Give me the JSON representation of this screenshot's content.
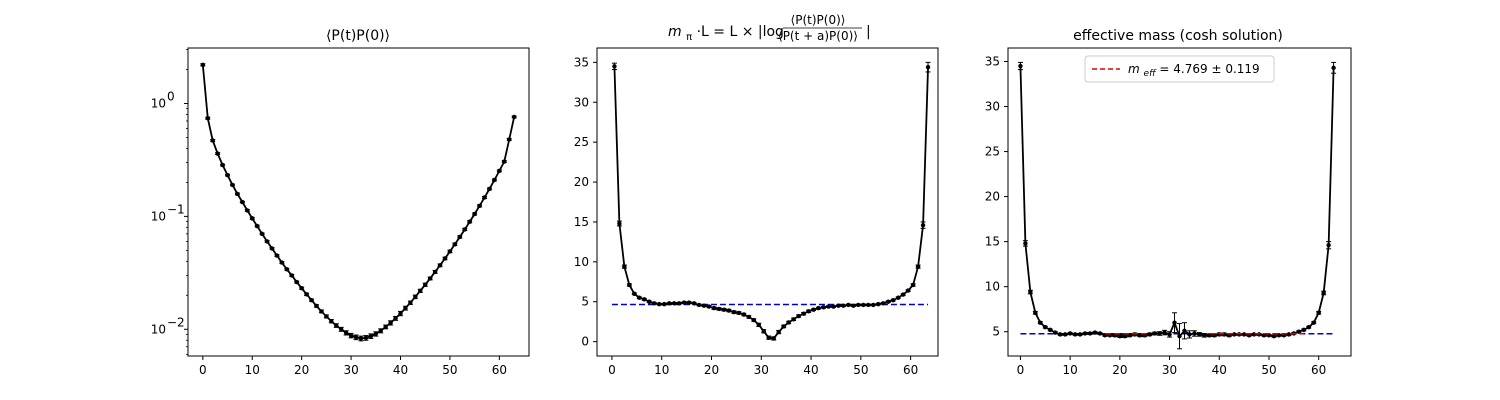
{
  "chart_data": [
    {
      "type": "line",
      "title": "⟨P(t)P(0)⟩",
      "xlabel": "",
      "ylabel": "",
      "yscale": "log",
      "xlim": [
        -3,
        66
      ],
      "ylim": [
        0.0058,
        3.1
      ],
      "x_ticks": [
        0,
        10,
        20,
        30,
        40,
        50,
        60
      ],
      "y_ticks": [
        {
          "value": 0.01,
          "base": "10",
          "exp": "−2"
        },
        {
          "value": 0.1,
          "base": "10",
          "exp": "−1"
        },
        {
          "value": 1,
          "base": "10",
          "exp": "0"
        }
      ],
      "grid": false,
      "color": "#000000",
      "series": [
        {
          "x": [
            0,
            1,
            2,
            3,
            4,
            5,
            6,
            7,
            8,
            9,
            10,
            11,
            12,
            13,
            14,
            15,
            16,
            17,
            18,
            19,
            20,
            21,
            22,
            23,
            24,
            25,
            26,
            27,
            28,
            29,
            30,
            31,
            32,
            33,
            34,
            35,
            36,
            37,
            38,
            39,
            40,
            41,
            42,
            43,
            44,
            45,
            46,
            47,
            48,
            49,
            50,
            51,
            52,
            53,
            54,
            55,
            56,
            57,
            58,
            59,
            60,
            61,
            62,
            63
          ],
          "y": [
            2.2,
            0.74,
            0.47,
            0.36,
            0.285,
            0.232,
            0.19,
            0.158,
            0.134,
            0.113,
            0.096,
            0.082,
            0.07,
            0.06,
            0.052,
            0.045,
            0.039,
            0.034,
            0.03,
            0.0262,
            0.0231,
            0.0204,
            0.0181,
            0.0161,
            0.0144,
            0.013,
            0.0118,
            0.0108,
            0.01,
            0.0093,
            0.0088,
            0.0085,
            0.0083,
            0.0084,
            0.0087,
            0.0091,
            0.0097,
            0.0105,
            0.0114,
            0.0125,
            0.0138,
            0.0154,
            0.0172,
            0.0194,
            0.0219,
            0.0248,
            0.0282,
            0.0322,
            0.0369,
            0.0424,
            0.0489,
            0.0566,
            0.0657,
            0.0766,
            0.0897,
            0.105,
            0.124,
            0.147,
            0.175,
            0.21,
            0.253,
            0.306,
            0.48,
            0.76
          ],
          "err": [
            0.05,
            0.015,
            0.01,
            0.007,
            0.005,
            0.004,
            0.003,
            0.003,
            0.002,
            0.002,
            0.002,
            0.0015,
            0.0012,
            0.001,
            0.0009,
            0.0008,
            0.0007,
            0.0006,
            0.0006,
            0.0005,
            0.0005,
            0.0005,
            0.0004,
            0.0004,
            0.0004,
            0.0004,
            0.0004,
            0.0004,
            0.0004,
            0.0004,
            0.0004,
            0.0004,
            0.0004,
            0.0004,
            0.0004,
            0.0004,
            0.0004,
            0.0004,
            0.0005,
            0.0005,
            0.0006,
            0.0006,
            0.0006,
            0.0007,
            0.0007,
            0.0008,
            0.0008,
            0.0009,
            0.001,
            0.0011,
            0.0012,
            0.0013,
            0.0015,
            0.0017,
            0.002,
            0.0023,
            0.0027,
            0.003,
            0.0036,
            0.0043,
            0.005,
            0.006,
            0.009,
            0.014
          ]
        }
      ]
    },
    {
      "type": "line",
      "title_parts": {
        "lhs": "m",
        "lhs_sub": "π",
        "mid": "·L = L × |log",
        "num": "⟨P(t)P(0)⟩",
        "den": "⟨P(t + a)P(0)⟩",
        "end": "|"
      },
      "xlabel": "",
      "ylabel": "",
      "xlim": [
        -3,
        65.5
      ],
      "ylim": [
        -1.8,
        36.8
      ],
      "x_ticks": [
        0,
        10,
        20,
        30,
        40,
        50,
        60
      ],
      "y_ticks": [
        0,
        5,
        10,
        15,
        20,
        25,
        30,
        35
      ],
      "grid": false,
      "color": "#000000",
      "series": [
        {
          "x": [
            0.5,
            1.5,
            2.5,
            3.5,
            4.5,
            5.5,
            6.5,
            7.5,
            8.5,
            9.5,
            10.5,
            11.5,
            12.5,
            13.5,
            14.5,
            15.5,
            16.5,
            17.5,
            18.5,
            19.5,
            20.5,
            21.5,
            22.5,
            23.5,
            24.5,
            25.5,
            26.5,
            27.5,
            28.5,
            29.5,
            30.5,
            31.5,
            32.5,
            33.5,
            34.5,
            35.5,
            36.5,
            37.5,
            38.5,
            39.5,
            40.5,
            41.5,
            42.5,
            43.5,
            44.5,
            45.5,
            46.5,
            47.5,
            48.5,
            49.5,
            50.5,
            51.5,
            52.5,
            53.5,
            54.5,
            55.5,
            56.5,
            57.5,
            58.5,
            59.5,
            60.5,
            61.5,
            62.5,
            63.5
          ],
          "y": [
            34.5,
            14.8,
            9.4,
            7.1,
            6.0,
            5.5,
            5.3,
            5.0,
            4.8,
            4.7,
            4.7,
            4.8,
            4.8,
            4.8,
            4.9,
            4.9,
            4.8,
            4.6,
            4.5,
            4.4,
            4.2,
            4.1,
            4.0,
            3.9,
            3.7,
            3.6,
            3.4,
            3.1,
            2.7,
            2.1,
            1.3,
            0.5,
            0.4,
            1.2,
            1.9,
            2.4,
            2.8,
            3.2,
            3.5,
            3.8,
            4.0,
            4.2,
            4.3,
            4.4,
            4.4,
            4.5,
            4.5,
            4.6,
            4.5,
            4.6,
            4.6,
            4.6,
            4.6,
            4.7,
            4.8,
            5.0,
            5.2,
            5.5,
            5.9,
            6.4,
            7.1,
            9.4,
            14.6,
            34.4
          ],
          "err": [
            0.4,
            0.3,
            0.2,
            0.15,
            0.1,
            0.1,
            0.1,
            0.1,
            0.1,
            0.1,
            0.1,
            0.1,
            0.1,
            0.1,
            0.1,
            0.1,
            0.1,
            0.1,
            0.1,
            0.1,
            0.15,
            0.15,
            0.15,
            0.15,
            0.15,
            0.15,
            0.15,
            0.15,
            0.15,
            0.2,
            0.2,
            0.2,
            0.2,
            0.2,
            0.15,
            0.15,
            0.15,
            0.15,
            0.15,
            0.15,
            0.1,
            0.1,
            0.1,
            0.1,
            0.1,
            0.1,
            0.1,
            0.1,
            0.1,
            0.1,
            0.1,
            0.1,
            0.1,
            0.1,
            0.1,
            0.1,
            0.1,
            0.1,
            0.1,
            0.1,
            0.15,
            0.2,
            0.4,
            0.6
          ]
        }
      ],
      "hline": {
        "y": 4.65,
        "x_range": [
          0,
          63.5
        ],
        "color": "#0000c8",
        "style": "dashed"
      }
    },
    {
      "type": "line",
      "title": "effective mass (cosh solution)",
      "xlabel": "",
      "ylabel": "",
      "xlim": [
        -2.5,
        66.5
      ],
      "ylim": [
        2.3,
        36.5
      ],
      "x_ticks": [
        0,
        10,
        20,
        30,
        40,
        50,
        60
      ],
      "y_ticks": [
        5,
        10,
        15,
        20,
        25,
        30,
        35
      ],
      "grid": false,
      "color": "#000000",
      "legend": {
        "position": "upper center",
        "label_sym": "m",
        "label_sub": "eff",
        "label_text": " = 4.769 ± 0.119"
      },
      "series": [
        {
          "x": [
            0,
            1,
            2,
            3,
            4,
            5,
            6,
            7,
            8,
            9,
            10,
            11,
            12,
            13,
            14,
            15,
            16,
            17,
            18,
            19,
            20,
            21,
            22,
            23,
            24,
            25,
            26,
            27,
            28,
            29,
            30,
            31,
            32,
            33,
            34,
            35,
            36,
            37,
            38,
            39,
            40,
            41,
            42,
            43,
            44,
            45,
            46,
            47,
            48,
            49,
            50,
            51,
            52,
            53,
            54,
            55,
            56,
            57,
            58,
            59,
            60,
            61,
            62,
            63
          ],
          "y": [
            34.5,
            14.8,
            9.4,
            7.1,
            6.0,
            5.5,
            5.2,
            4.9,
            4.7,
            4.7,
            4.8,
            4.7,
            4.7,
            4.8,
            4.8,
            4.9,
            4.8,
            4.6,
            4.6,
            4.6,
            4.5,
            4.5,
            4.6,
            4.7,
            4.6,
            4.6,
            4.7,
            4.8,
            4.8,
            4.9,
            4.7,
            6.0,
            4.5,
            5.1,
            4.7,
            4.8,
            4.7,
            4.6,
            4.6,
            4.6,
            4.7,
            4.7,
            4.6,
            4.7,
            4.7,
            4.7,
            4.6,
            4.7,
            4.7,
            4.6,
            4.6,
            4.5,
            4.6,
            4.6,
            4.7,
            4.8,
            5.0,
            5.2,
            5.5,
            6.0,
            7.1,
            9.3,
            14.6,
            34.3
          ],
          "err": [
            0.4,
            0.3,
            0.2,
            0.15,
            0.1,
            0.1,
            0.1,
            0.1,
            0.1,
            0.1,
            0.1,
            0.1,
            0.1,
            0.1,
            0.1,
            0.1,
            0.1,
            0.1,
            0.1,
            0.15,
            0.15,
            0.15,
            0.15,
            0.15,
            0.15,
            0.15,
            0.15,
            0.15,
            0.2,
            0.25,
            0.3,
            1.1,
            1.4,
            0.9,
            0.4,
            0.3,
            0.2,
            0.2,
            0.15,
            0.15,
            0.15,
            0.15,
            0.15,
            0.1,
            0.1,
            0.1,
            0.1,
            0.1,
            0.1,
            0.1,
            0.1,
            0.1,
            0.1,
            0.1,
            0.1,
            0.1,
            0.1,
            0.1,
            0.1,
            0.1,
            0.15,
            0.2,
            0.4,
            0.6
          ]
        }
      ],
      "hline": {
        "y": 4.77,
        "x_range": [
          0,
          63
        ],
        "color": "#0000c8",
        "style": "dashed"
      },
      "fit_segments": [
        {
          "x_range": [
            17,
            26
          ],
          "y": 4.77,
          "color": "#e00000"
        },
        {
          "x_range": [
            38,
            57
          ],
          "y": 4.77,
          "color": "#e00000"
        }
      ]
    }
  ]
}
